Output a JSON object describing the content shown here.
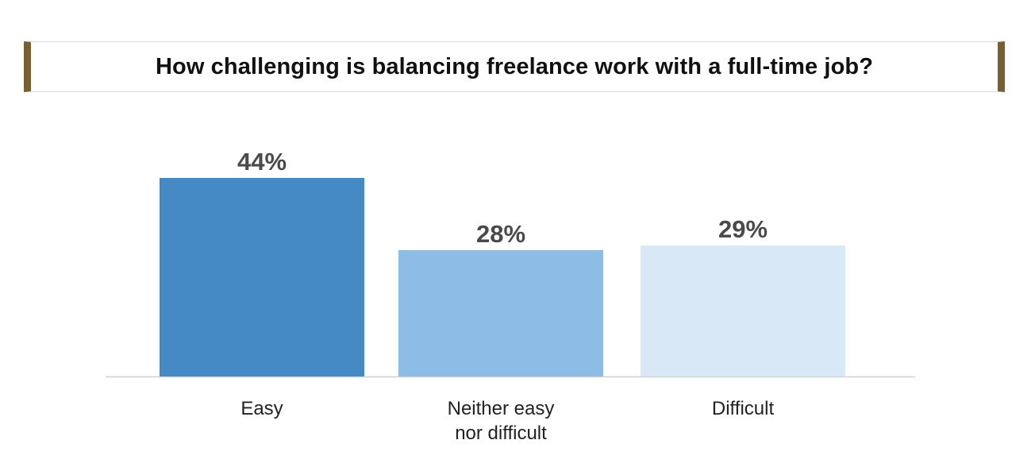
{
  "chart_data": {
    "type": "bar",
    "title": "How challenging is balancing freelance work with a full-time job?",
    "categories": [
      "Easy",
      "Neither easy nor difficult",
      "Difficult"
    ],
    "category_label_lines": [
      [
        "Easy"
      ],
      [
        "Neither easy",
        "nor difficult"
      ],
      [
        "Difficult"
      ]
    ],
    "values": [
      44,
      28,
      29
    ],
    "data_labels": [
      "44%",
      "28%",
      "29%"
    ],
    "colors": [
      "#4589c5",
      "#8dbde6",
      "#d8e8f7"
    ],
    "ylim": [
      0,
      44
    ],
    "grid": false,
    "legend": "none"
  },
  "colors": {
    "title_accent": "#7a5f33",
    "axis_line": "#cfcfcf",
    "value_label": "#4a4a4a"
  }
}
